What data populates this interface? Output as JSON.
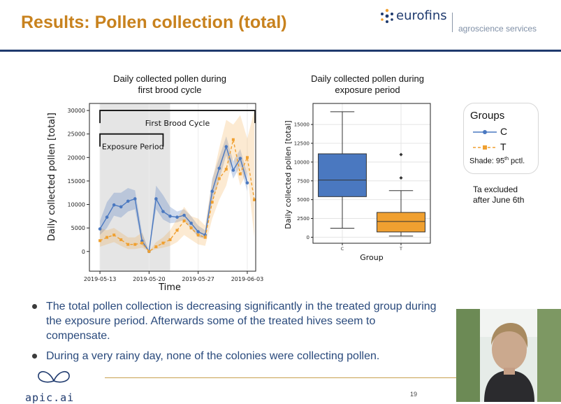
{
  "slide": {
    "title": "Results: Pollen collection (total)",
    "brand_name": "eurofins",
    "brand_subtitle": "agroscience services",
    "page_number": "19",
    "footer_logo_text": "apic.ai"
  },
  "colors": {
    "control": "#4a78c0",
    "treated": "#f0a030",
    "title": "#c8821e",
    "navy": "#1f3a6e",
    "bullet_text": "#2a4a7c"
  },
  "legend": {
    "title": "Groups",
    "items": [
      {
        "label": "C",
        "color": "#4a78c0"
      },
      {
        "label": "T",
        "color": "#f0a030"
      }
    ],
    "shade_prefix": "Shade: 95",
    "shade_sup": "th",
    "shade_suffix": " pctl."
  },
  "note_lines": [
    "Ta excluded",
    "after June 6th"
  ],
  "bullets": [
    "The total pollen collection is decreasing significantly in the treated group during the exposure period. Afterwards some of the treated hives seem to compensate.",
    "During a very rainy day, none of the colonies were collecting pollen."
  ],
  "chart_data": [
    {
      "type": "line",
      "title_lines": [
        "Daily collected pollen during",
        "first brood cycle"
      ],
      "xlabel": "Time",
      "ylabel": "Daily collected pollen [total]",
      "x_tick_labels": [
        "2019-05-13",
        "2019-05-20",
        "2019-05-27",
        "2019-06-03"
      ],
      "x_tick_days": [
        0,
        7,
        14,
        21
      ],
      "x_range_days": [
        -1.5,
        22.2
      ],
      "y_ticks": [
        0,
        5000,
        10000,
        15000,
        20000,
        25000,
        30000
      ],
      "ylim": [
        -4200,
        31500
      ],
      "exposure_shade_days": [
        0,
        10
      ],
      "annotations": [
        {
          "label": "First Brood Cycle",
          "start_day": 0,
          "end_day": 22.2,
          "y": 30000
        },
        {
          "label": "Exposure Period",
          "start_day": 0,
          "end_day": 9,
          "y": 25000
        }
      ],
      "series": [
        {
          "name": "C",
          "days": [
            0,
            1,
            2,
            3,
            4,
            5,
            6,
            7,
            8,
            9,
            10,
            11,
            12,
            13,
            14,
            15,
            16,
            17,
            18,
            19,
            20,
            21,
            22
          ],
          "values": [
            4800,
            7300,
            9900,
            9500,
            10700,
            11200,
            2200,
            0,
            11200,
            8500,
            7500,
            7300,
            7700,
            6000,
            4200,
            3500,
            12800,
            17700,
            22300,
            17300,
            19800,
            14600,
            null
          ],
          "ci_lower": [
            3500,
            5000,
            7600,
            7200,
            8500,
            9000,
            1400,
            0,
            9000,
            6800,
            6000,
            6200,
            6700,
            4800,
            3100,
            2700,
            10500,
            15200,
            20500,
            15500,
            18200,
            12800,
            null
          ],
          "ci_upper": [
            6500,
            10500,
            12500,
            12500,
            13500,
            13000,
            4000,
            0,
            14000,
            12000,
            9500,
            8500,
            9000,
            7500,
            5500,
            4500,
            15500,
            20000,
            24500,
            19200,
            21800,
            16500,
            null
          ]
        },
        {
          "name": "T",
          "days": [
            0,
            1,
            2,
            3,
            4,
            5,
            6,
            7,
            8,
            9,
            10,
            11,
            12,
            13,
            14,
            15,
            16,
            17,
            18,
            19,
            20,
            21,
            22
          ],
          "values": [
            2300,
            3000,
            3500,
            2500,
            1500,
            1500,
            1800,
            0,
            1000,
            1800,
            2500,
            4500,
            6500,
            5000,
            3500,
            3000,
            10500,
            15500,
            17500,
            23800,
            16500,
            20000,
            11000
          ],
          "ci_lower": [
            1000,
            1500,
            2000,
            1200,
            500,
            500,
            800,
            0,
            500,
            800,
            1200,
            2000,
            3500,
            2500,
            1500,
            1200,
            7000,
            11000,
            14000,
            20000,
            14000,
            17000,
            3000
          ],
          "ci_upper": [
            5000,
            4500,
            5000,
            4000,
            3000,
            3000,
            4000,
            0,
            2000,
            3000,
            4500,
            7000,
            9500,
            7500,
            7000,
            5500,
            15000,
            22000,
            28000,
            27000,
            29000,
            24000,
            30000
          ]
        }
      ]
    },
    {
      "type": "box",
      "title_lines": [
        "Daily collected pollen during",
        "exposure period"
      ],
      "xlabel": "Group",
      "ylabel": "Daily collected pollen [total]",
      "categories": [
        "C",
        "T"
      ],
      "y_ticks": [
        0,
        2500,
        5000,
        7500,
        10000,
        12500,
        15000
      ],
      "ylim": [
        -800,
        17800
      ],
      "boxes": [
        {
          "name": "C",
          "whislo": 1200,
          "q1": 5400,
          "med": 7600,
          "q3": 11100,
          "whishi": 16700,
          "fliers": []
        },
        {
          "name": "T",
          "whislo": 150,
          "q1": 700,
          "med": 2100,
          "q3": 3300,
          "whishi": 6200,
          "fliers": [
            7900,
            11000
          ]
        }
      ]
    }
  ]
}
